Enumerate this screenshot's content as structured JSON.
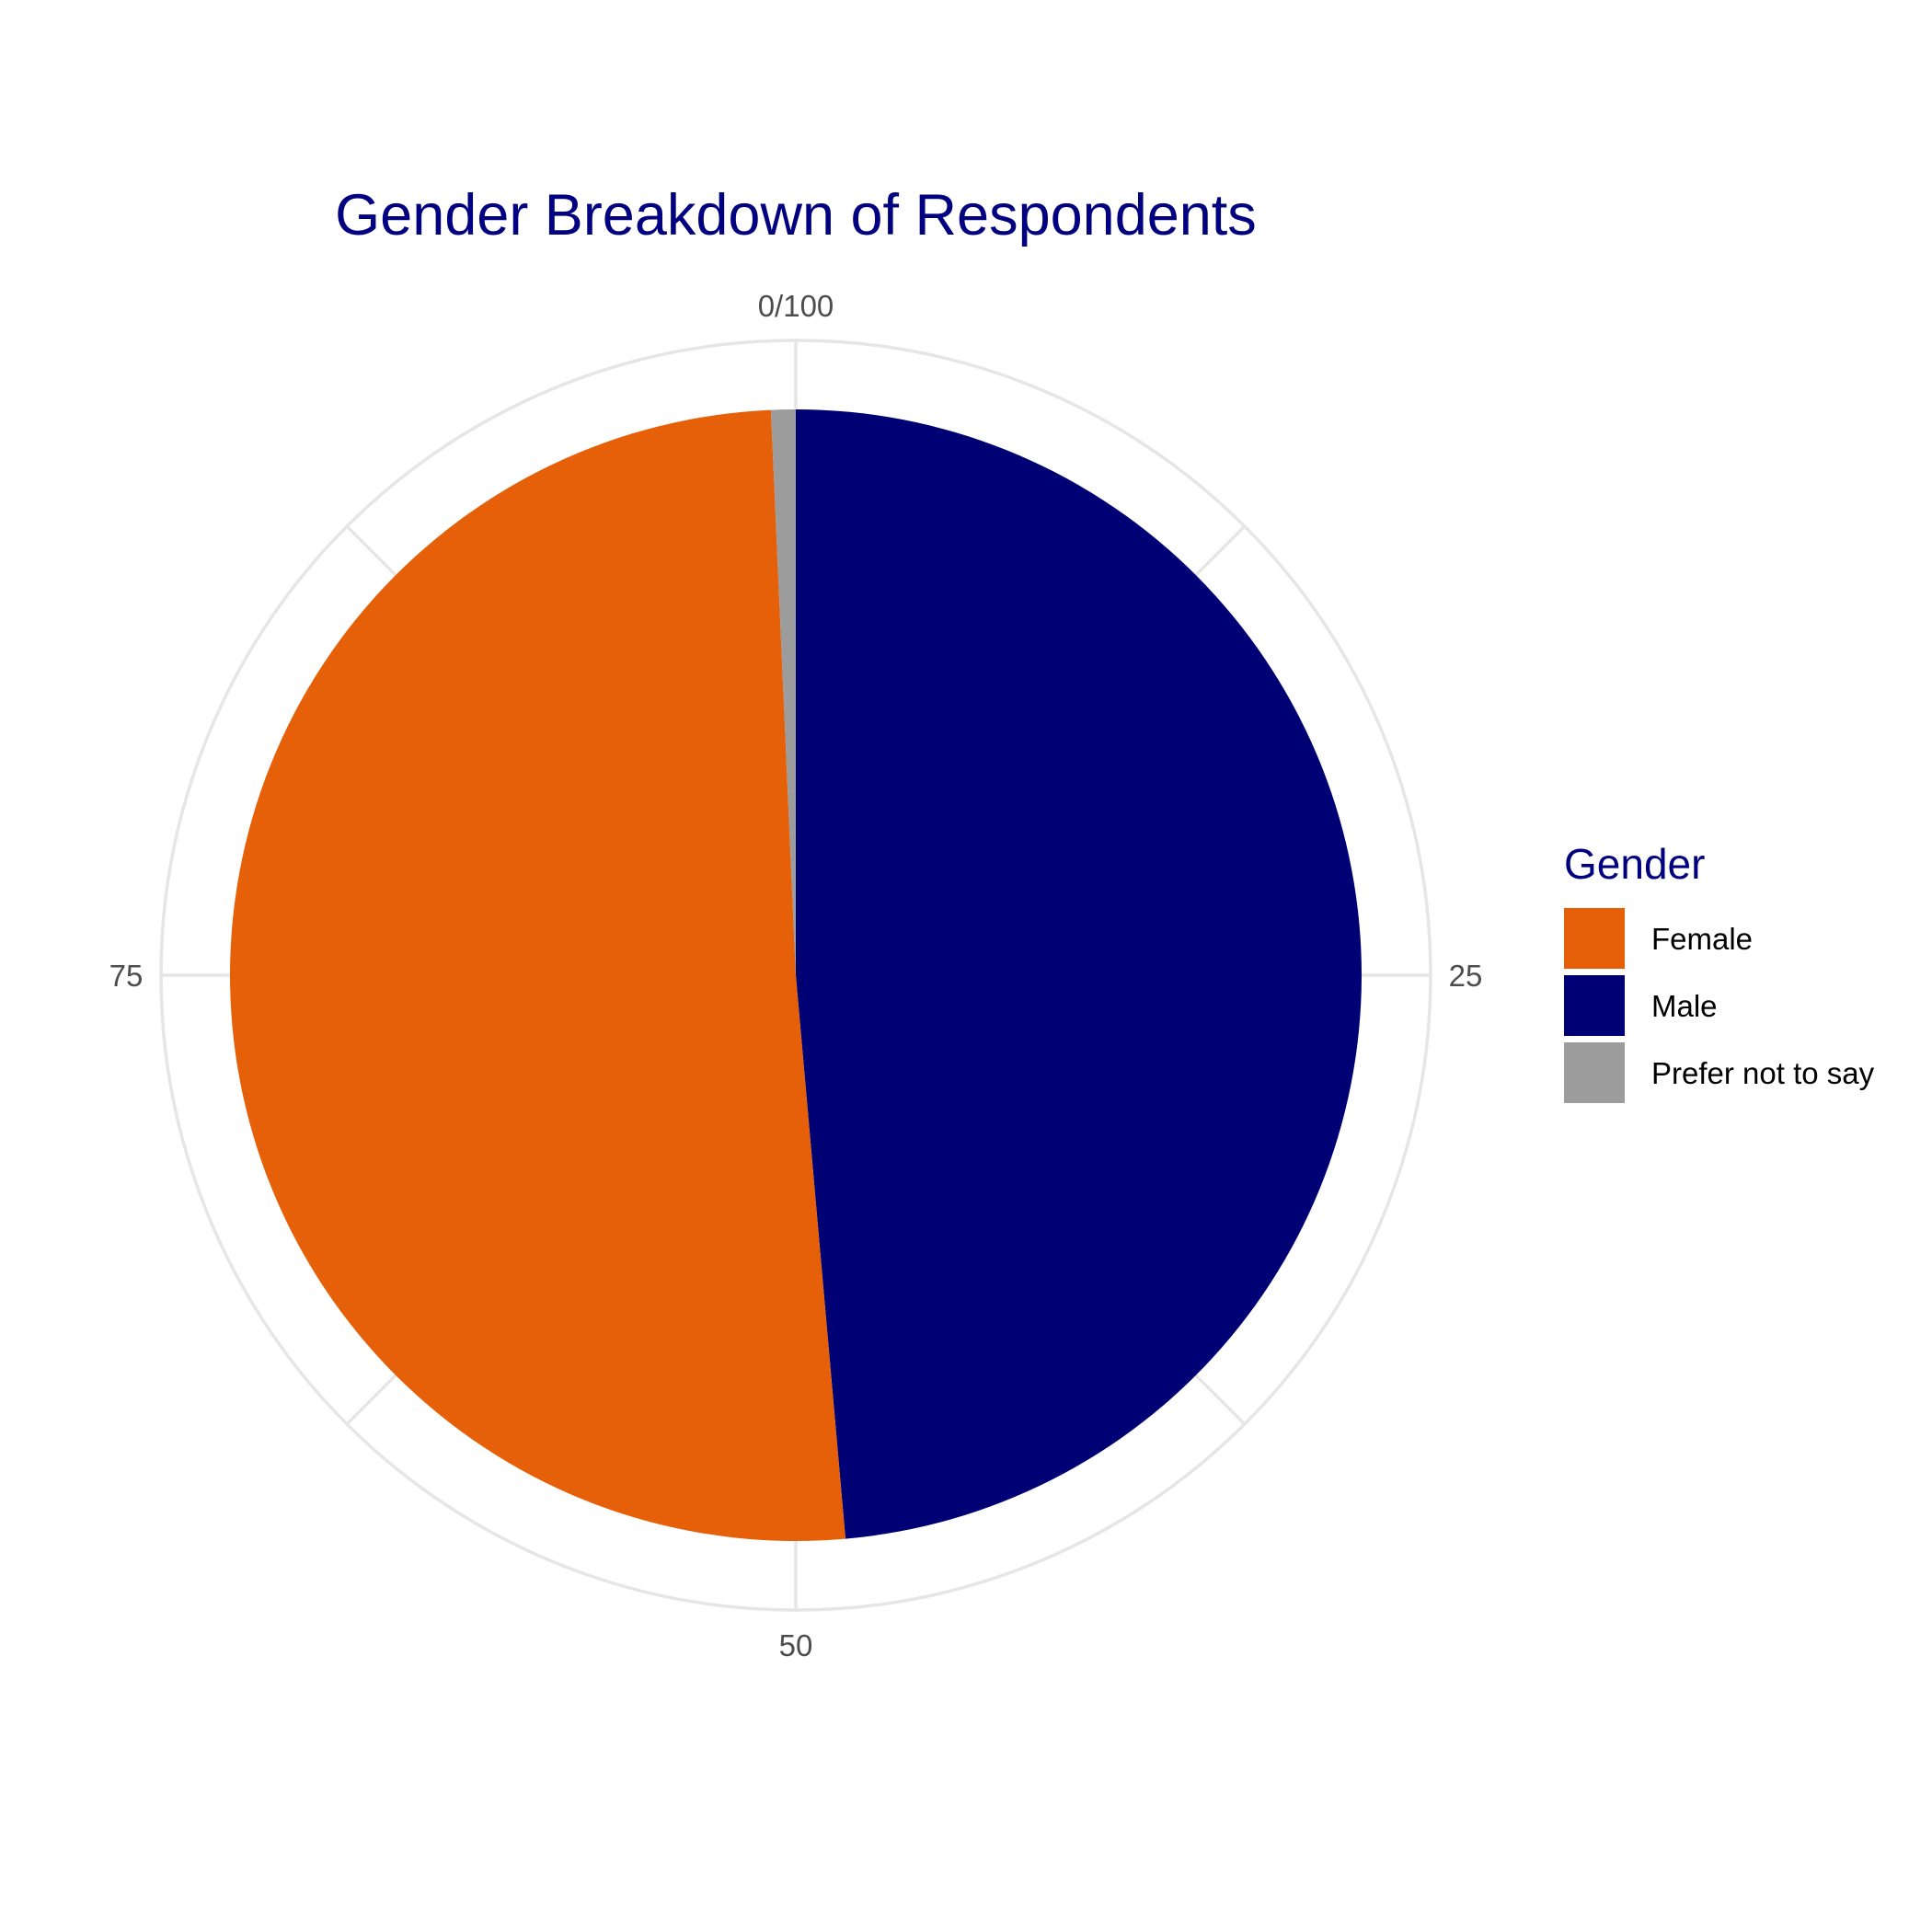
{
  "chart_data": {
    "type": "pie",
    "title": "Gender Breakdown of Respondents",
    "slices": [
      {
        "label": "Male",
        "value": 48.6,
        "color": "#000075"
      },
      {
        "label": "Female",
        "value": 50.7,
        "color": "#E6600A"
      },
      {
        "label": "Prefer not to say",
        "value": 0.7,
        "color": "#9C9C9C"
      }
    ],
    "angular_axis": {
      "range": [
        0,
        100
      ],
      "tick_labels": [
        "0/100",
        "25",
        "50",
        "75"
      ]
    },
    "grid": true,
    "legend": {
      "title": "Gender",
      "position": "right",
      "entries": [
        {
          "label": "Female",
          "color": "#E6600A"
        },
        {
          "label": "Male",
          "color": "#000075"
        },
        {
          "label": "Prefer not to say",
          "color": "#9C9C9C"
        }
      ]
    }
  }
}
